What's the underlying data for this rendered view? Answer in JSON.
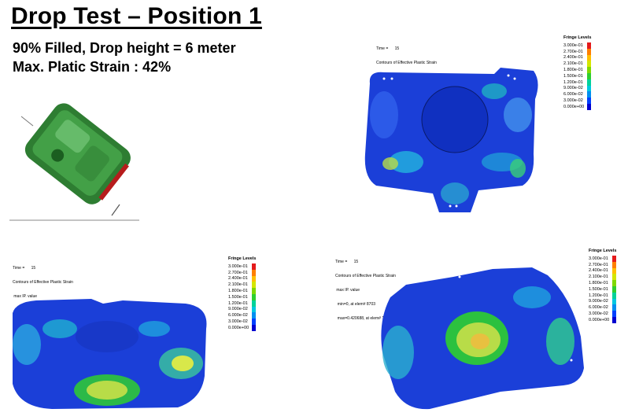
{
  "title": "Drop Test – Position 1",
  "subtitle_line1": "90% Filled, Drop height = 6 meter",
  "subtitle_line2": "Max. Platic Strain : 42%",
  "info": {
    "time_label": "Time =",
    "time_value": "15",
    "contours": "Contours of Effective Plastic Strain",
    "max_ip": "max IP. value",
    "min_line": "min=0, at elem# 8703",
    "max_line": "max=0.420688, at elem# 1776"
  },
  "fringe_title": "Fringe Levels",
  "fringe_levels": [
    "3.000e-01",
    "2.700e-01",
    "2.400e-01",
    "2.100e-01",
    "1.800e-01",
    "1.500e-01",
    "1.200e-01",
    "9.000e-02",
    "6.000e-02",
    "3.000e-02",
    "0.000e+00"
  ],
  "fringe_colors": [
    "#e41a1c",
    "#ff7f00",
    "#ffbf00",
    "#d4e600",
    "#7fd800",
    "#2fcf2f",
    "#00d29a",
    "#00c8e0",
    "#008ff0",
    "#0040ff",
    "#0000d0"
  ],
  "colors": {
    "model_green": "#2f8f2f",
    "mesh_blue": "#1b3fd8",
    "hot_yellow": "#d8e84a"
  }
}
